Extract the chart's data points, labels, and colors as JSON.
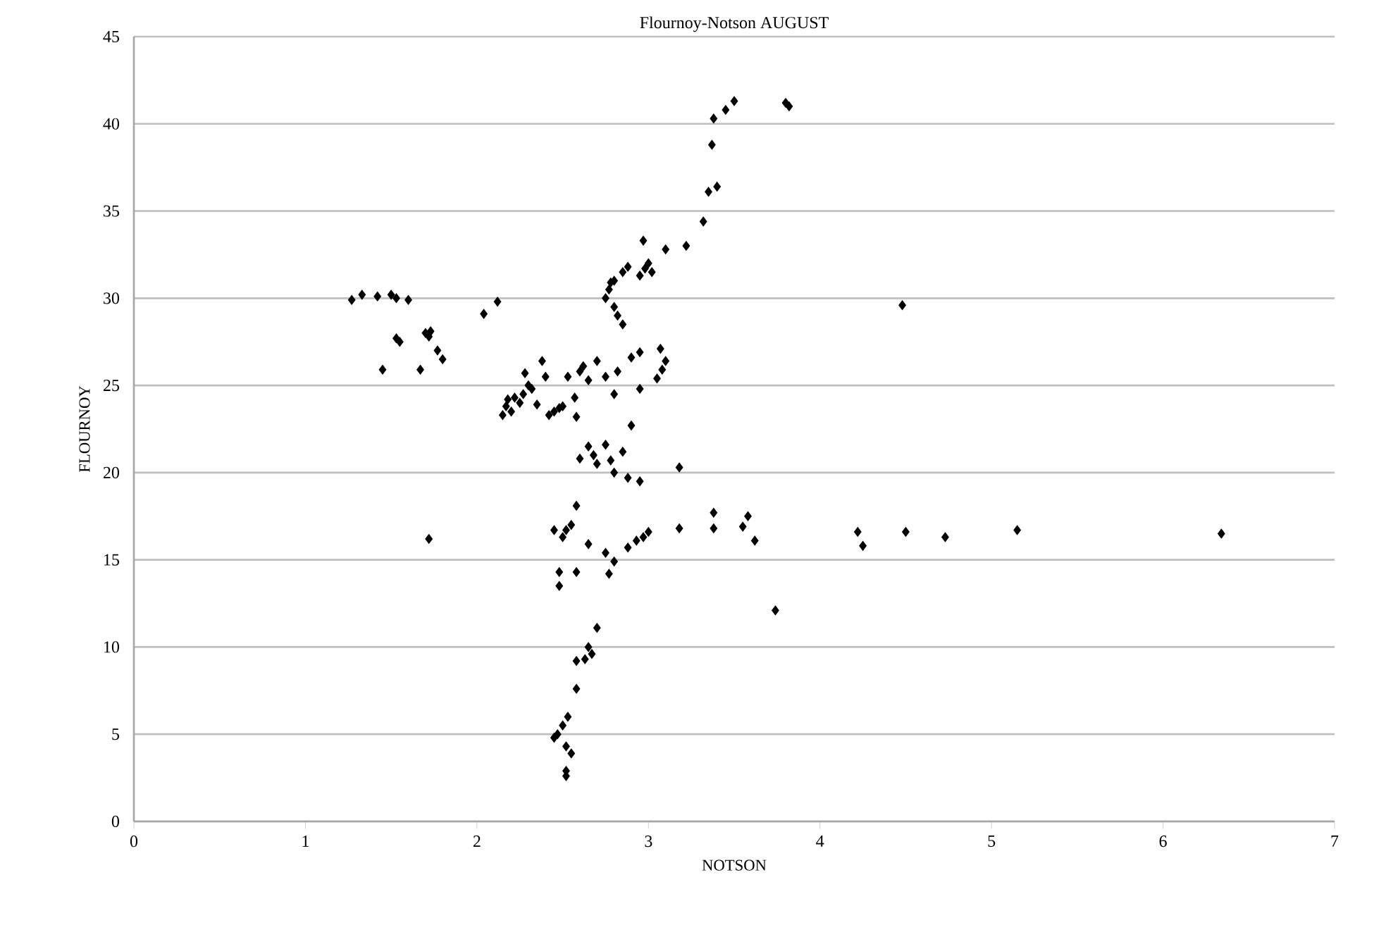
{
  "chart_data": {
    "type": "scatter",
    "title": "Flournoy-Notson  AUGUST",
    "xlabel": "NOTSON",
    "ylabel": "FLOURNOY",
    "xlim": [
      0,
      7
    ],
    "xticks": [
      0,
      1,
      2,
      3,
      4,
      5,
      6,
      7
    ],
    "ylim": [
      0,
      45
    ],
    "yticks": [
      0,
      5,
      10,
      15,
      20,
      25,
      30,
      35,
      40,
      45
    ],
    "grid": "y",
    "marker": "diamond",
    "series": [
      {
        "color": "#000000",
        "x": [
          1.27,
          1.33,
          1.42,
          1.5,
          1.53,
          1.6,
          1.45,
          1.53,
          1.55,
          1.67,
          1.7,
          1.73,
          1.72,
          1.77,
          1.8,
          1.72,
          2.04,
          2.12,
          2.15,
          2.17,
          2.18,
          2.2,
          2.22,
          2.25,
          2.27,
          2.3,
          2.28,
          2.32,
          2.35,
          2.38,
          2.4,
          2.42,
          2.45,
          2.48,
          2.5,
          2.53,
          2.57,
          2.58,
          2.6,
          2.62,
          2.65,
          2.7,
          2.75,
          2.8,
          2.82,
          2.9,
          2.95,
          2.95,
          3.05,
          3.08,
          3.1,
          3.07,
          2.75,
          2.77,
          2.78,
          2.8,
          2.8,
          2.82,
          2.85,
          2.85,
          2.88,
          2.95,
          2.98,
          3.0,
          2.97,
          3.02,
          3.1,
          3.22,
          3.32,
          3.35,
          3.4,
          3.37,
          3.38,
          3.45,
          3.5,
          3.8,
          3.82,
          4.48,
          2.6,
          2.65,
          2.68,
          2.7,
          2.75,
          2.78,
          2.8,
          2.85,
          2.88,
          2.9,
          2.95,
          3.18,
          2.45,
          2.5,
          2.52,
          2.55,
          2.48,
          2.48,
          2.58,
          2.65,
          2.75,
          2.77,
          2.8,
          2.88,
          2.93,
          2.97,
          3.0,
          3.18,
          3.38,
          3.38,
          3.55,
          3.58,
          3.62,
          3.74,
          4.22,
          4.25,
          4.5,
          4.73,
          5.15,
          6.34,
          2.58,
          2.7,
          2.65,
          2.67,
          2.63,
          2.58,
          2.58,
          2.45,
          2.47,
          2.5,
          2.53,
          2.52,
          2.55,
          2.52,
          2.52
        ],
        "values": [
          29.9,
          30.2,
          30.1,
          30.2,
          30.0,
          29.9,
          25.9,
          27.7,
          27.5,
          25.9,
          28.0,
          28.1,
          27.8,
          27.0,
          26.5,
          16.2,
          29.1,
          29.8,
          23.3,
          23.8,
          24.2,
          23.5,
          24.3,
          24.0,
          24.5,
          25.0,
          25.7,
          24.8,
          23.9,
          26.4,
          25.5,
          23.3,
          23.5,
          23.7,
          23.8,
          25.5,
          24.3,
          23.2,
          25.8,
          26.1,
          25.3,
          26.4,
          25.5,
          24.5,
          25.8,
          26.6,
          24.8,
          26.9,
          25.4,
          25.9,
          26.4,
          27.1,
          30.0,
          30.5,
          30.9,
          31.0,
          29.5,
          29.0,
          28.5,
          31.5,
          31.8,
          31.3,
          31.7,
          32.0,
          33.3,
          31.5,
          32.8,
          33.0,
          34.4,
          36.1,
          36.4,
          38.8,
          40.3,
          40.8,
          41.3,
          41.2,
          41.0,
          29.6,
          20.8,
          21.5,
          21.0,
          20.5,
          21.6,
          20.7,
          20.0,
          21.2,
          19.7,
          22.7,
          19.5,
          20.3,
          16.7,
          16.3,
          16.7,
          17.0,
          14.3,
          13.5,
          14.3,
          15.9,
          15.4,
          14.2,
          14.9,
          15.7,
          16.1,
          16.3,
          16.6,
          16.8,
          17.7,
          16.8,
          16.9,
          17.5,
          16.1,
          12.1,
          16.6,
          15.8,
          16.6,
          16.3,
          16.7,
          16.5,
          18.1,
          11.1,
          10.0,
          9.6,
          9.3,
          9.2,
          7.6,
          4.8,
          5.0,
          5.5,
          6.0,
          4.3,
          3.9,
          2.9,
          2.6
        ]
      }
    ]
  }
}
